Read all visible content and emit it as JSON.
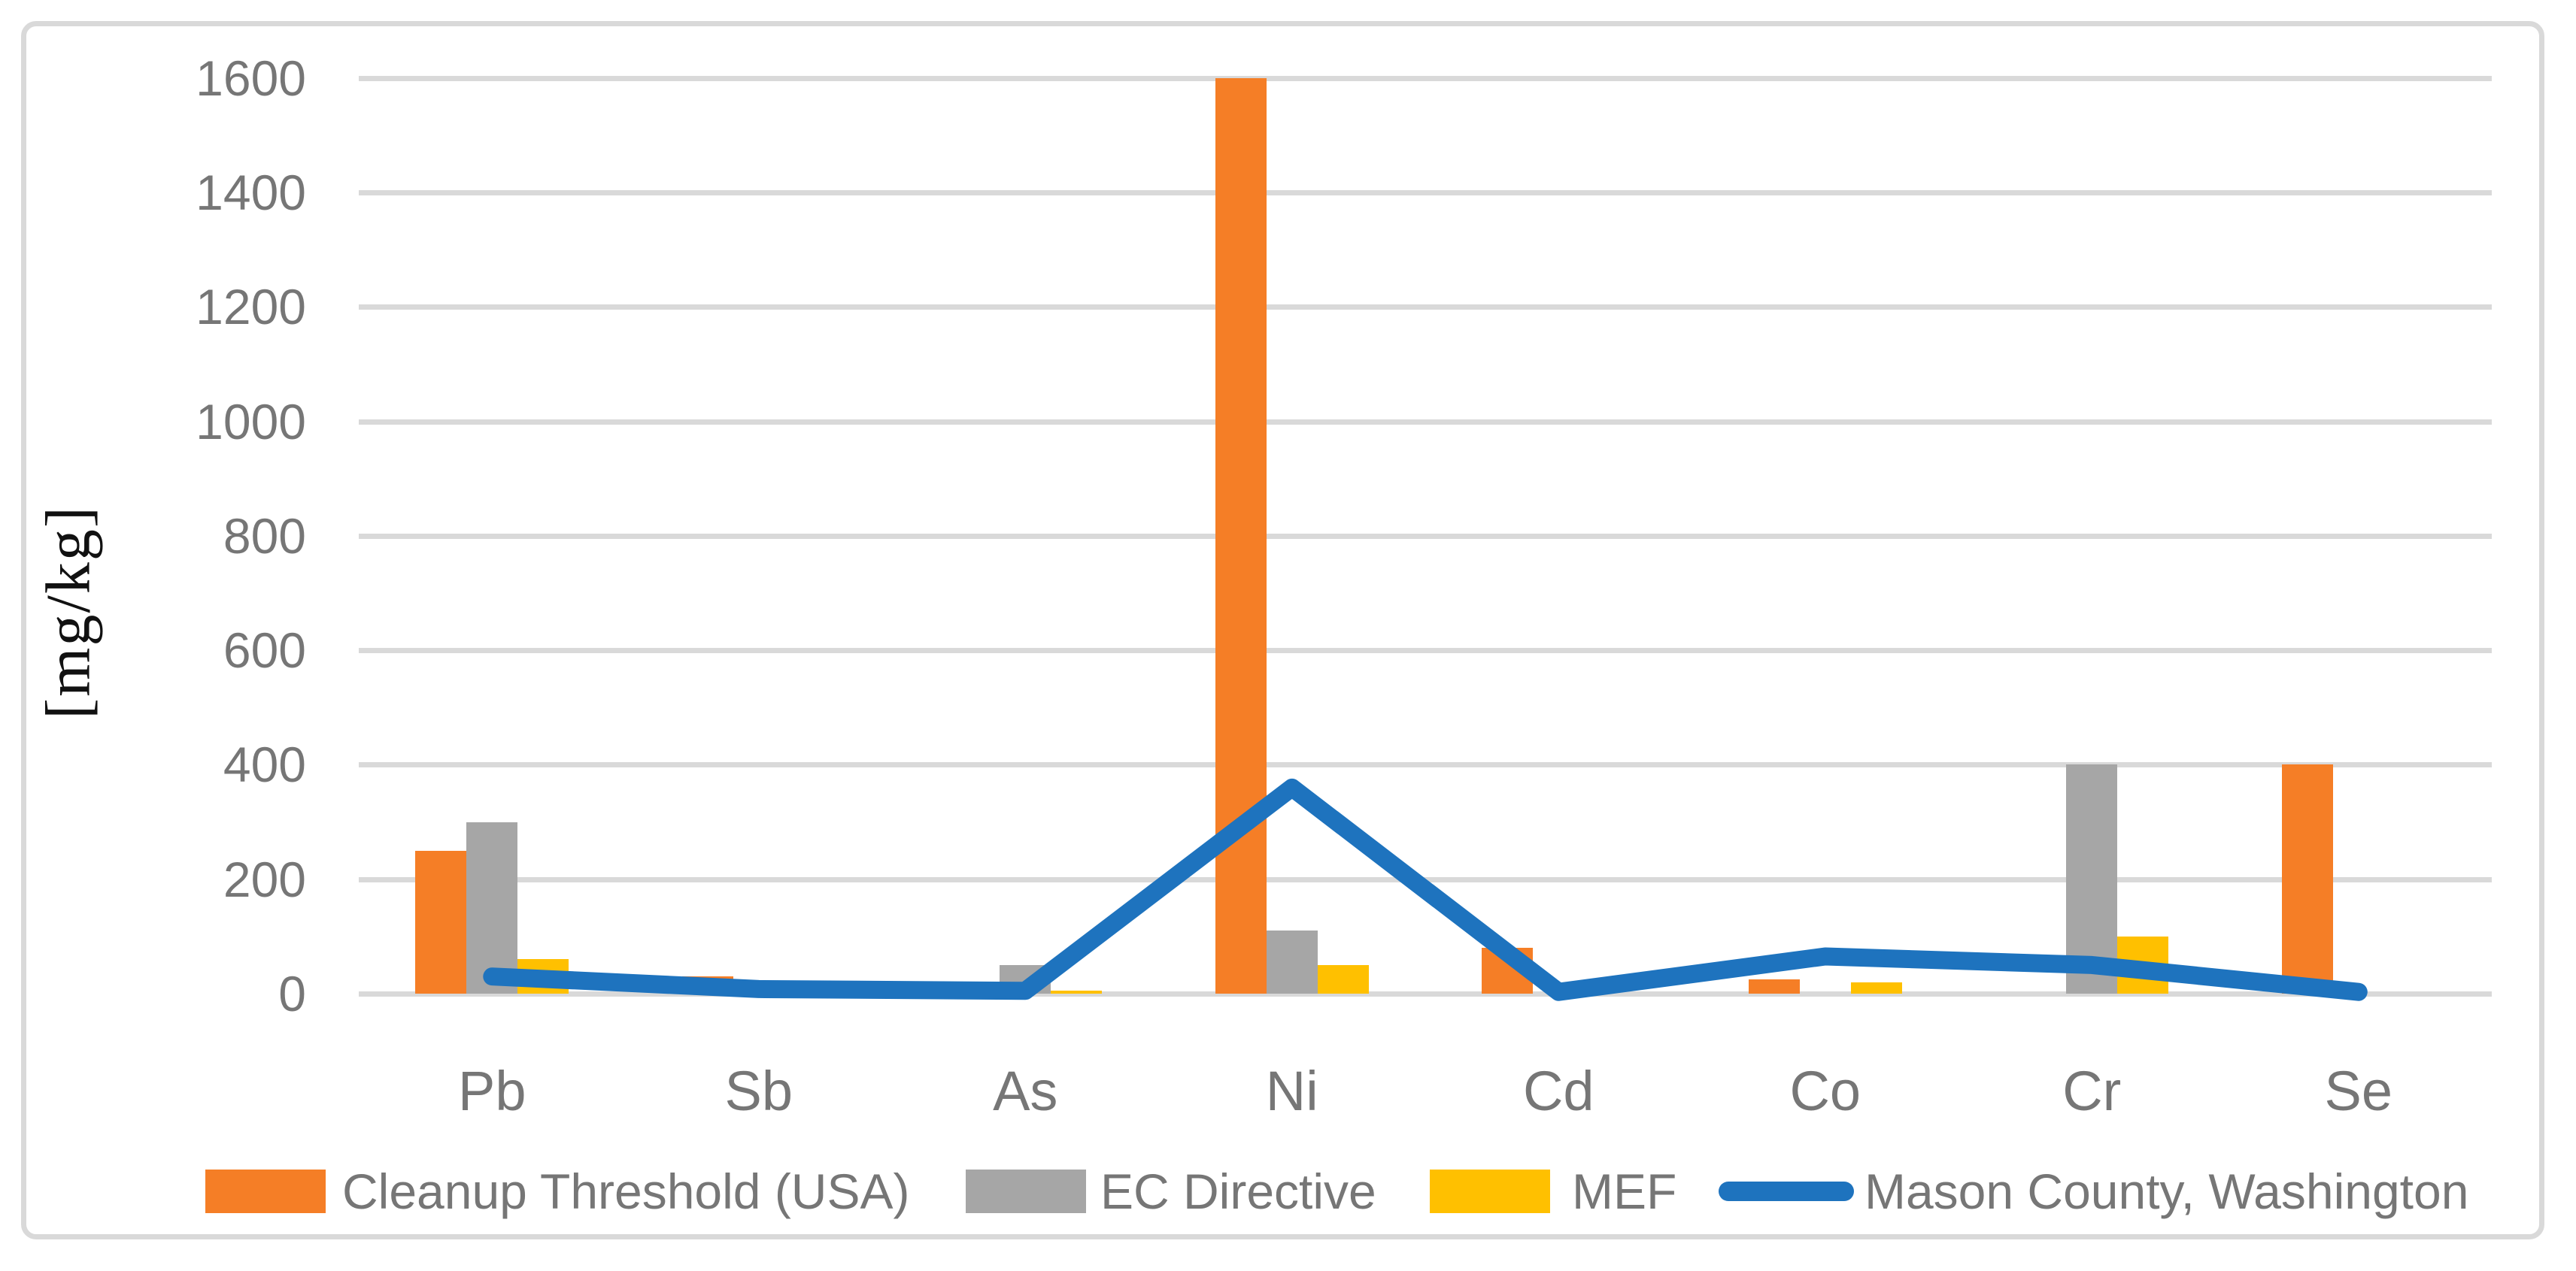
{
  "chart_data": {
    "type": "bar+line",
    "title": "",
    "ylabel": "[mg/kg]",
    "xlabel": "",
    "categories": [
      "Pb",
      "Sb",
      "As",
      "Ni",
      "Cd",
      "Co",
      "Cr",
      "Se"
    ],
    "y_ticks": [
      0,
      200,
      400,
      600,
      800,
      1000,
      1200,
      1400,
      1600
    ],
    "ylim": [
      0,
      1600
    ],
    "grid": true,
    "legend_position": "bottom",
    "series": [
      {
        "name": "Cleanup Threshold (USA)",
        "key": "cleanup-threshold-usa",
        "type": "bar",
        "color": "#f57e26",
        "values": [
          250,
          30,
          0,
          1600,
          80,
          25,
          0,
          400
        ]
      },
      {
        "name": "EC Directive",
        "key": "ec-directive",
        "type": "bar",
        "color": "#a6a6a6",
        "values": [
          300,
          0,
          50,
          110,
          0,
          0,
          400,
          0
        ]
      },
      {
        "name": "MEF",
        "key": "mef",
        "type": "bar",
        "color": "#ffc000",
        "values": [
          60,
          0,
          5,
          50,
          0,
          20,
          100,
          0
        ]
      },
      {
        "name": "Mason County, Washington",
        "key": "mason-county-washington",
        "type": "line",
        "color": "#1e73be",
        "values": [
          30,
          8,
          5,
          360,
          3,
          65,
          50,
          3
        ]
      }
    ],
    "colors": {
      "gridline": "#d9d9d9",
      "axis_text": "#767676",
      "y_title_text": "#111111"
    }
  }
}
